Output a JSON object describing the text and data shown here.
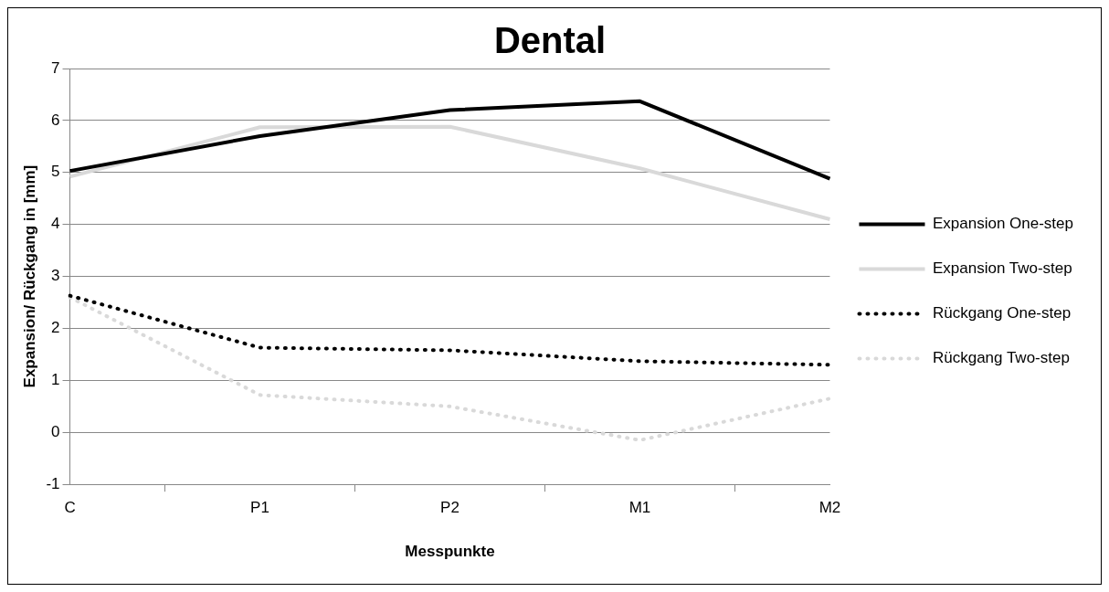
{
  "chart_data": {
    "type": "line",
    "title": "Dental",
    "xlabel": "Messpunkte",
    "ylabel": "Expansion/ Rückgang in [mm]",
    "categories": [
      "C",
      "P1",
      "P2",
      "M1",
      "M2"
    ],
    "series": [
      {
        "name": "Expansion One-step",
        "color": "#000000",
        "line_style": "solid",
        "values": [
          5.03,
          5.7,
          6.2,
          6.37,
          4.88
        ]
      },
      {
        "name": "Expansion Two-step",
        "color": "#d9d9d9",
        "line_style": "solid",
        "values": [
          4.92,
          5.87,
          5.88,
          5.08,
          4.1
        ]
      },
      {
        "name": "Rückgang One-step",
        "color": "#000000",
        "line_style": "dotted",
        "values": [
          2.63,
          1.63,
          1.58,
          1.37,
          1.3
        ]
      },
      {
        "name": "Rückgang Two-step",
        "color": "#d9d9d9",
        "line_style": "dotted",
        "values": [
          2.6,
          0.72,
          0.5,
          -0.15,
          0.65
        ]
      }
    ],
    "ylim": [
      -1,
      7
    ],
    "yticks": [
      -1,
      0,
      1,
      2,
      3,
      4,
      5,
      6,
      7
    ],
    "grid": "y",
    "legend": "right",
    "marker": "none"
  }
}
